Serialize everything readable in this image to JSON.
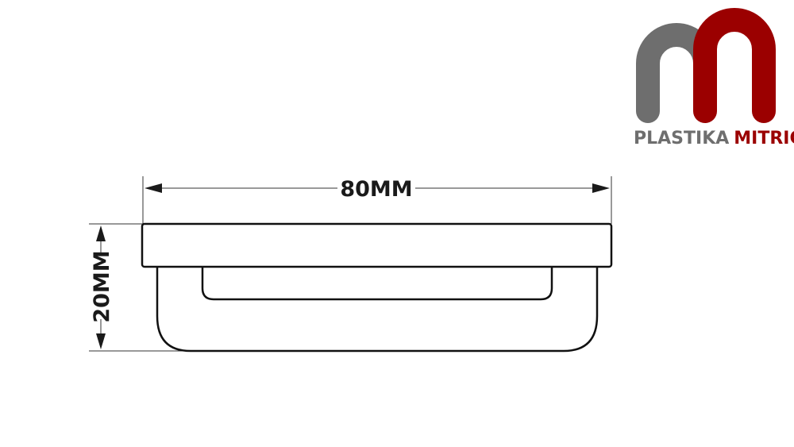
{
  "drawing": {
    "width_label": "80MM",
    "height_label": "20MM"
  },
  "logo": {
    "brand_part1": "PLASTIKA",
    "brand_part2": "MITRIĆ",
    "colors": {
      "gray": "#6e6e6e",
      "red": "#9b0000"
    }
  }
}
